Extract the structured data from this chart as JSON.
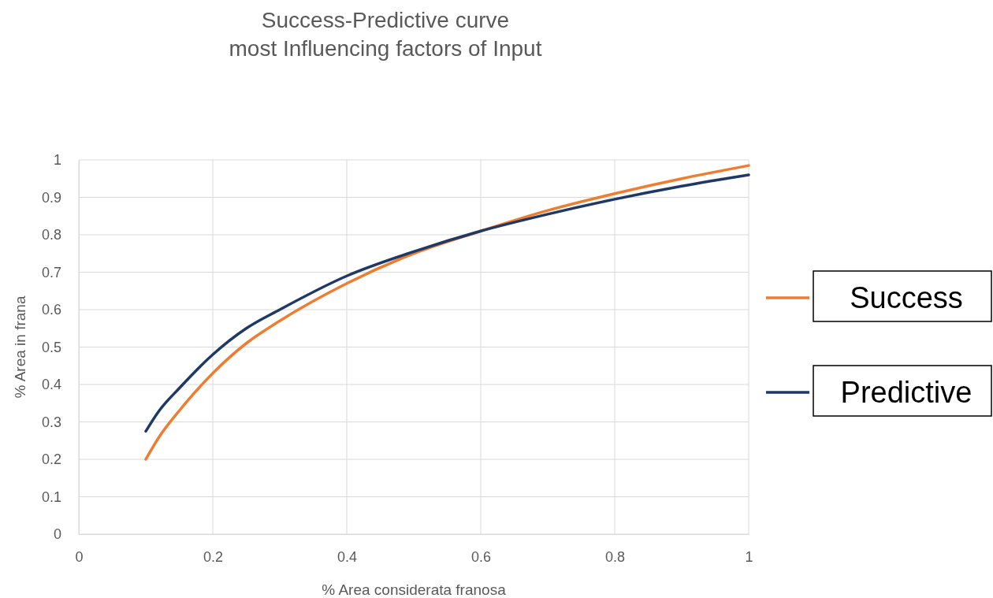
{
  "chart_data": {
    "type": "line",
    "title": "Success-Predictive curve\nmost Influencing factors of Input",
    "xlabel": "% Area considerata franosa",
    "ylabel": "% Area in frana",
    "x": [
      0.1,
      0.12,
      0.15,
      0.2,
      0.25,
      0.3,
      0.4,
      0.5,
      0.6,
      0.7,
      0.8,
      0.9,
      1.0
    ],
    "series": [
      {
        "name": "Success",
        "color": "#ed7d31",
        "values": [
          0.2,
          0.26,
          0.33,
          0.43,
          0.51,
          0.57,
          0.67,
          0.75,
          0.81,
          0.865,
          0.91,
          0.95,
          0.985
        ]
      },
      {
        "name": "Predictive",
        "color": "#1f3864",
        "values": [
          0.275,
          0.33,
          0.39,
          0.48,
          0.55,
          0.6,
          0.69,
          0.755,
          0.81,
          0.855,
          0.895,
          0.93,
          0.96
        ]
      }
    ],
    "xlim": [
      0,
      1
    ],
    "ylim": [
      0,
      1
    ],
    "xticks": [
      0,
      0.2,
      0.4,
      0.6,
      0.8,
      1
    ],
    "yticks": [
      0,
      0.1,
      0.2,
      0.3,
      0.4,
      0.5,
      0.6,
      0.7,
      0.8,
      0.9,
      1
    ],
    "grid": true,
    "legend": "right",
    "marker": "none",
    "line_style": "solid"
  }
}
